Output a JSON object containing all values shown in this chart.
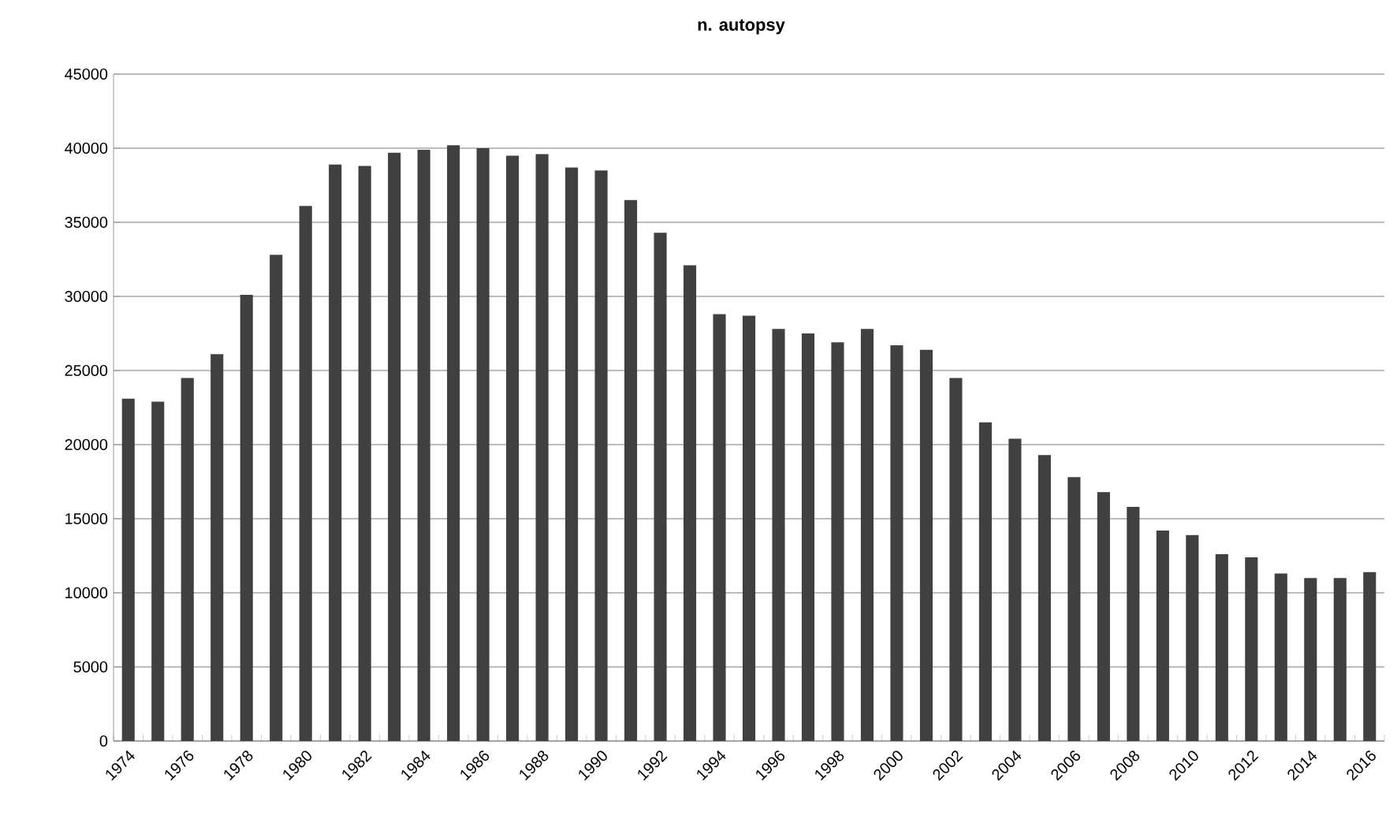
{
  "chart_data": {
    "type": "bar",
    "title": "n. autopsy",
    "categories": [
      "1974",
      null,
      "1976",
      null,
      "1978",
      null,
      "1980",
      null,
      "1982",
      null,
      "1984",
      null,
      "1986",
      null,
      "1988",
      null,
      "1990",
      null,
      "1992",
      null,
      "1994",
      null,
      "1996",
      null,
      "1998",
      null,
      "2000",
      null,
      "2002",
      null,
      "2004",
      null,
      "2006",
      null,
      "2008",
      null,
      "2010",
      null,
      "2012",
      null,
      "2014",
      null,
      "2016"
    ],
    "values": [
      23100,
      22900,
      24500,
      26100,
      30100,
      32800,
      36100,
      38900,
      38800,
      39700,
      39900,
      40200,
      40000,
      39500,
      39600,
      38700,
      38500,
      36500,
      34300,
      32100,
      28800,
      28700,
      27800,
      27500,
      26900,
      27800,
      26700,
      26400,
      24500,
      21500,
      20400,
      19300,
      17800,
      16800,
      15800,
      14200,
      13900,
      12600,
      12400,
      11300,
      11000,
      11000,
      11400
    ],
    "color": "#404040",
    "ylim": [
      0,
      45000
    ],
    "yticks": [
      0,
      5000,
      10000,
      15000,
      20000,
      25000,
      30000,
      35000,
      40000,
      45000
    ],
    "grid": "y"
  }
}
